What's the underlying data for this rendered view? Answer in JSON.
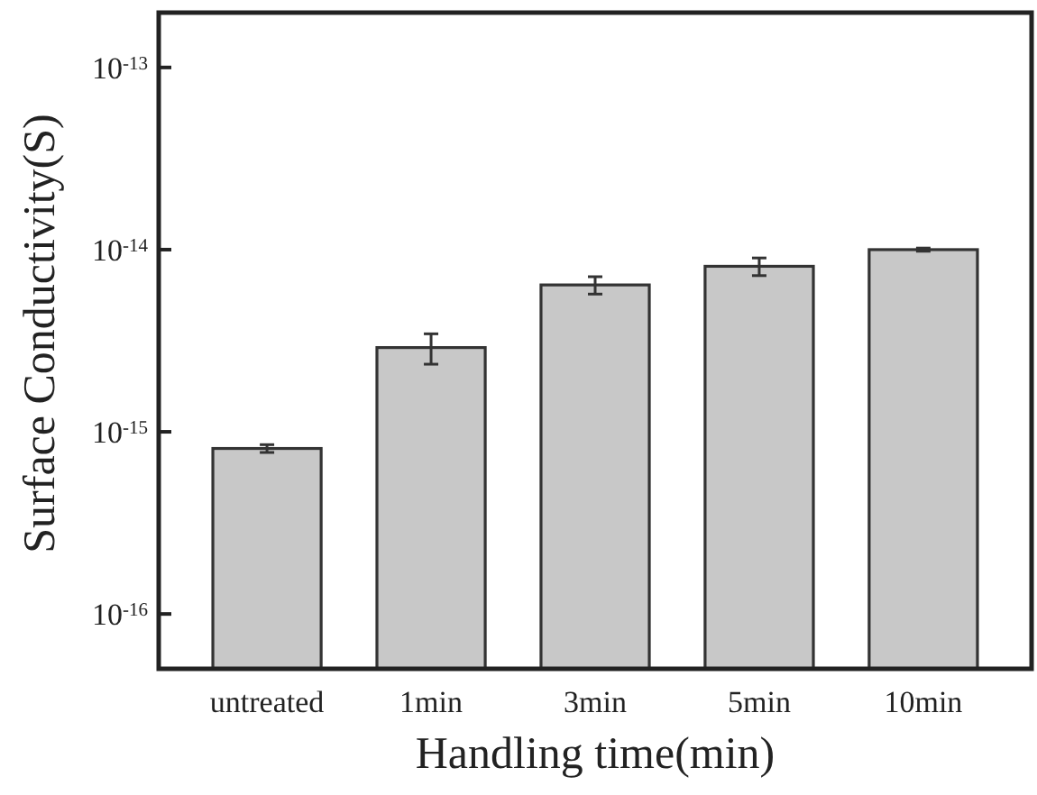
{
  "chart_data": {
    "type": "bar",
    "xlabel": "Handling time(min)",
    "ylabel": "Surface Conductivity(S)",
    "categories": [
      "untreated",
      "1min",
      "3min",
      "5min",
      "10min"
    ],
    "values": [
      8.1e-16,
      2.9e-15,
      6.4e-15,
      8.1e-15,
      1e-14
    ],
    "errors": [
      4e-17,
      5.5e-16,
      7e-16,
      9e-16,
      2e-16
    ],
    "color": "#c8c8c8",
    "log": true,
    "ylim": [
      5e-17,
      2e-13
    ],
    "yticks": [
      {
        "value": 1e-16,
        "label": "10$^{-16}$"
      },
      {
        "value": 1e-15,
        "label": "10$^{-15}$"
      },
      {
        "value": 1e-14,
        "label": "10$^{-14}$"
      },
      {
        "value": 1e-13,
        "label": "10$^{-13}$"
      }
    ],
    "grid": false
  }
}
